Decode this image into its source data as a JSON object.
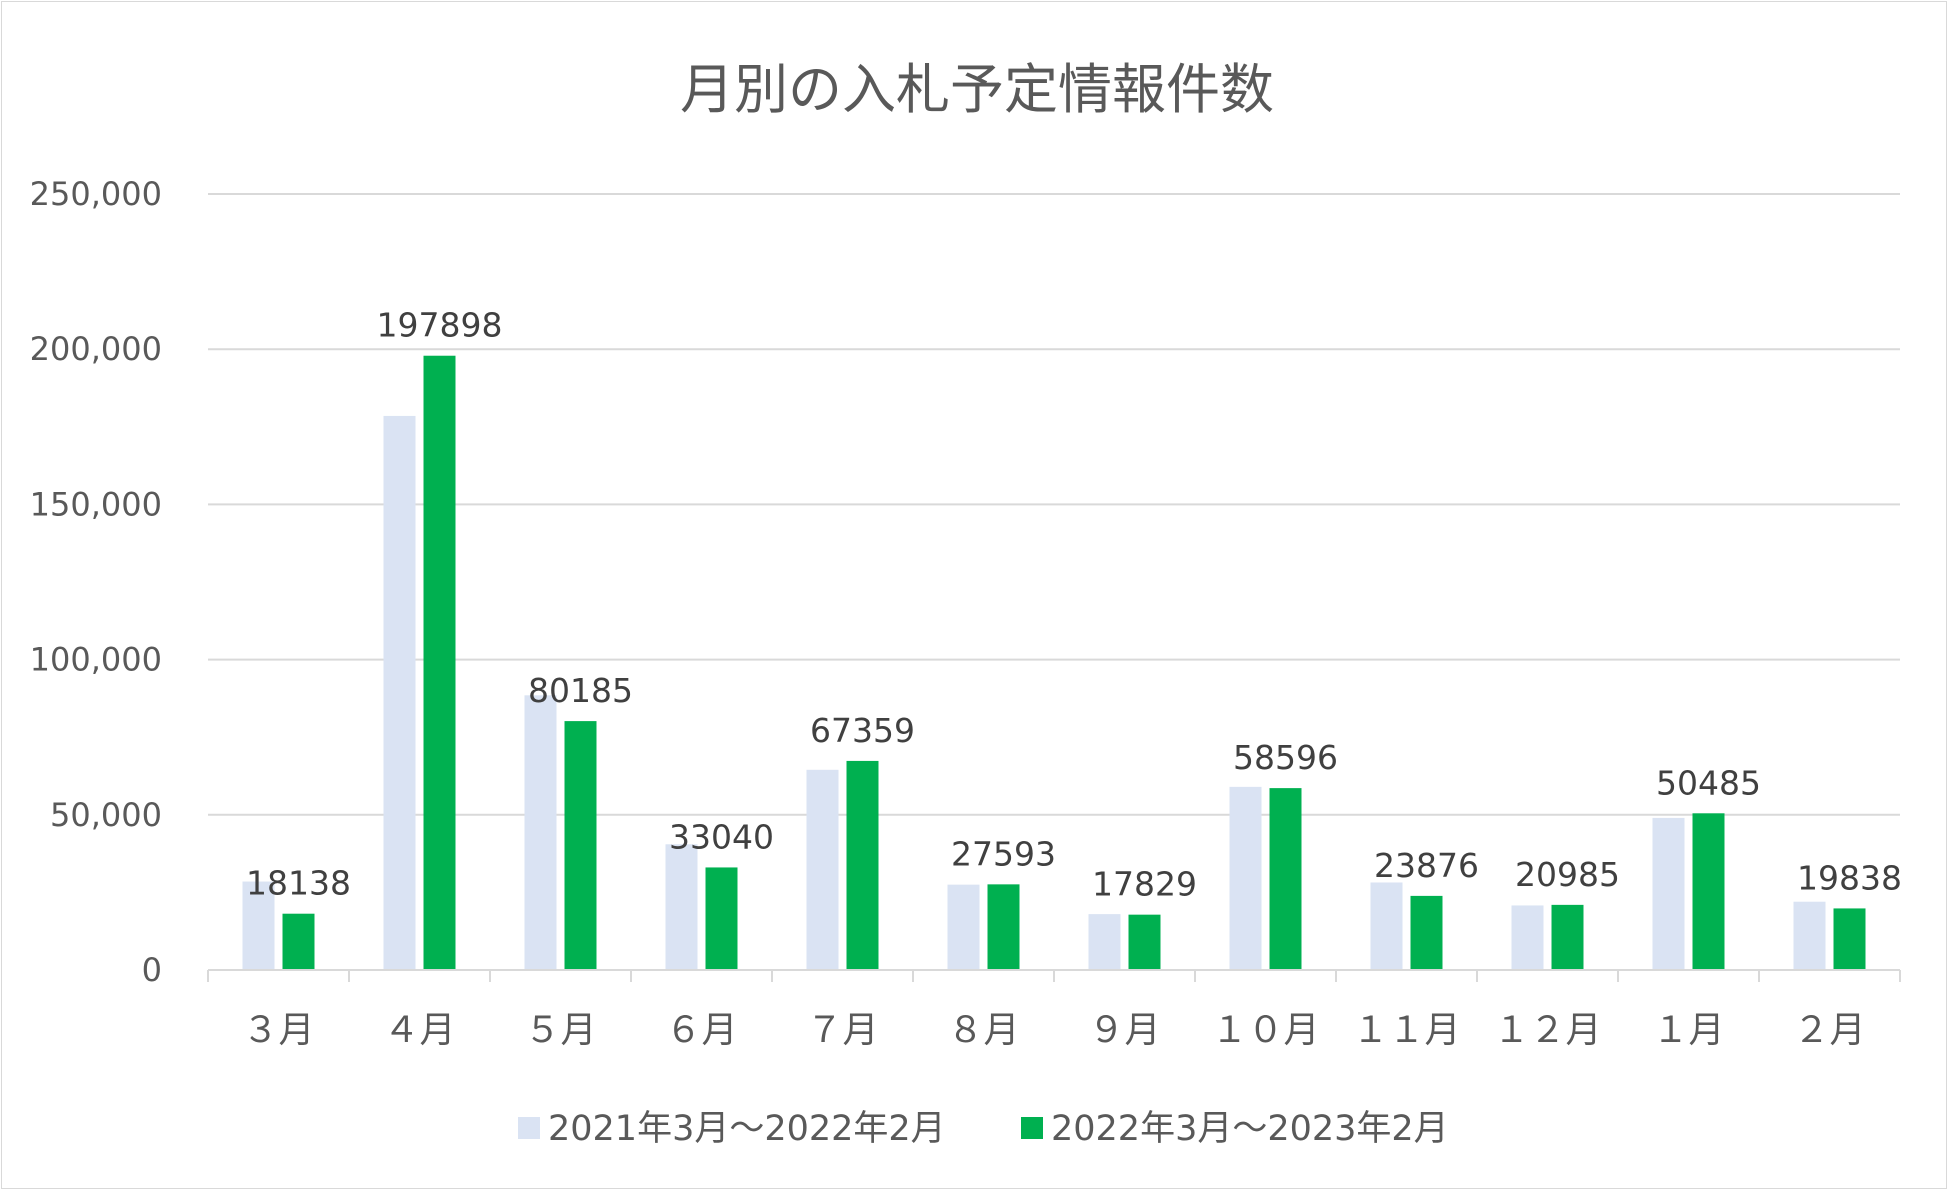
{
  "chart_data": {
    "type": "bar",
    "title": "月別の入札予定情報件数",
    "categories": [
      "３月",
      "４月",
      "５月",
      "６月",
      "７月",
      "８月",
      "９月",
      "１０月",
      "１１月",
      "１２月",
      "１月",
      "２月"
    ],
    "series": [
      {
        "name": "2021年3月～2022年2月",
        "color": "#dae3f3",
        "values": [
          28500,
          178500,
          88500,
          40500,
          64500,
          27500,
          18000,
          59000,
          28200,
          20800,
          49000,
          22000
        ]
      },
      {
        "name": "2022年3月～2023年2月",
        "color": "#00b050",
        "values": [
          18138,
          197898,
          80185,
          33040,
          67359,
          27593,
          17829,
          58596,
          23876,
          20985,
          50485,
          19838
        ],
        "data_labels": [
          "18138",
          "197898",
          "80185",
          "33040",
          "67359",
          "27593",
          "17829",
          "58596",
          "23876",
          "20985",
          "50485",
          "19838"
        ]
      }
    ],
    "ylim": [
      0,
      250000
    ],
    "yticks": [
      0,
      50000,
      100000,
      150000,
      200000,
      250000
    ],
    "ytick_labels": [
      "0",
      "50,000",
      "100,000",
      "150,000",
      "200,000",
      "250,000"
    ],
    "grid": true,
    "gridline_color": "#d9d9d9",
    "legend_position": "bottom"
  }
}
